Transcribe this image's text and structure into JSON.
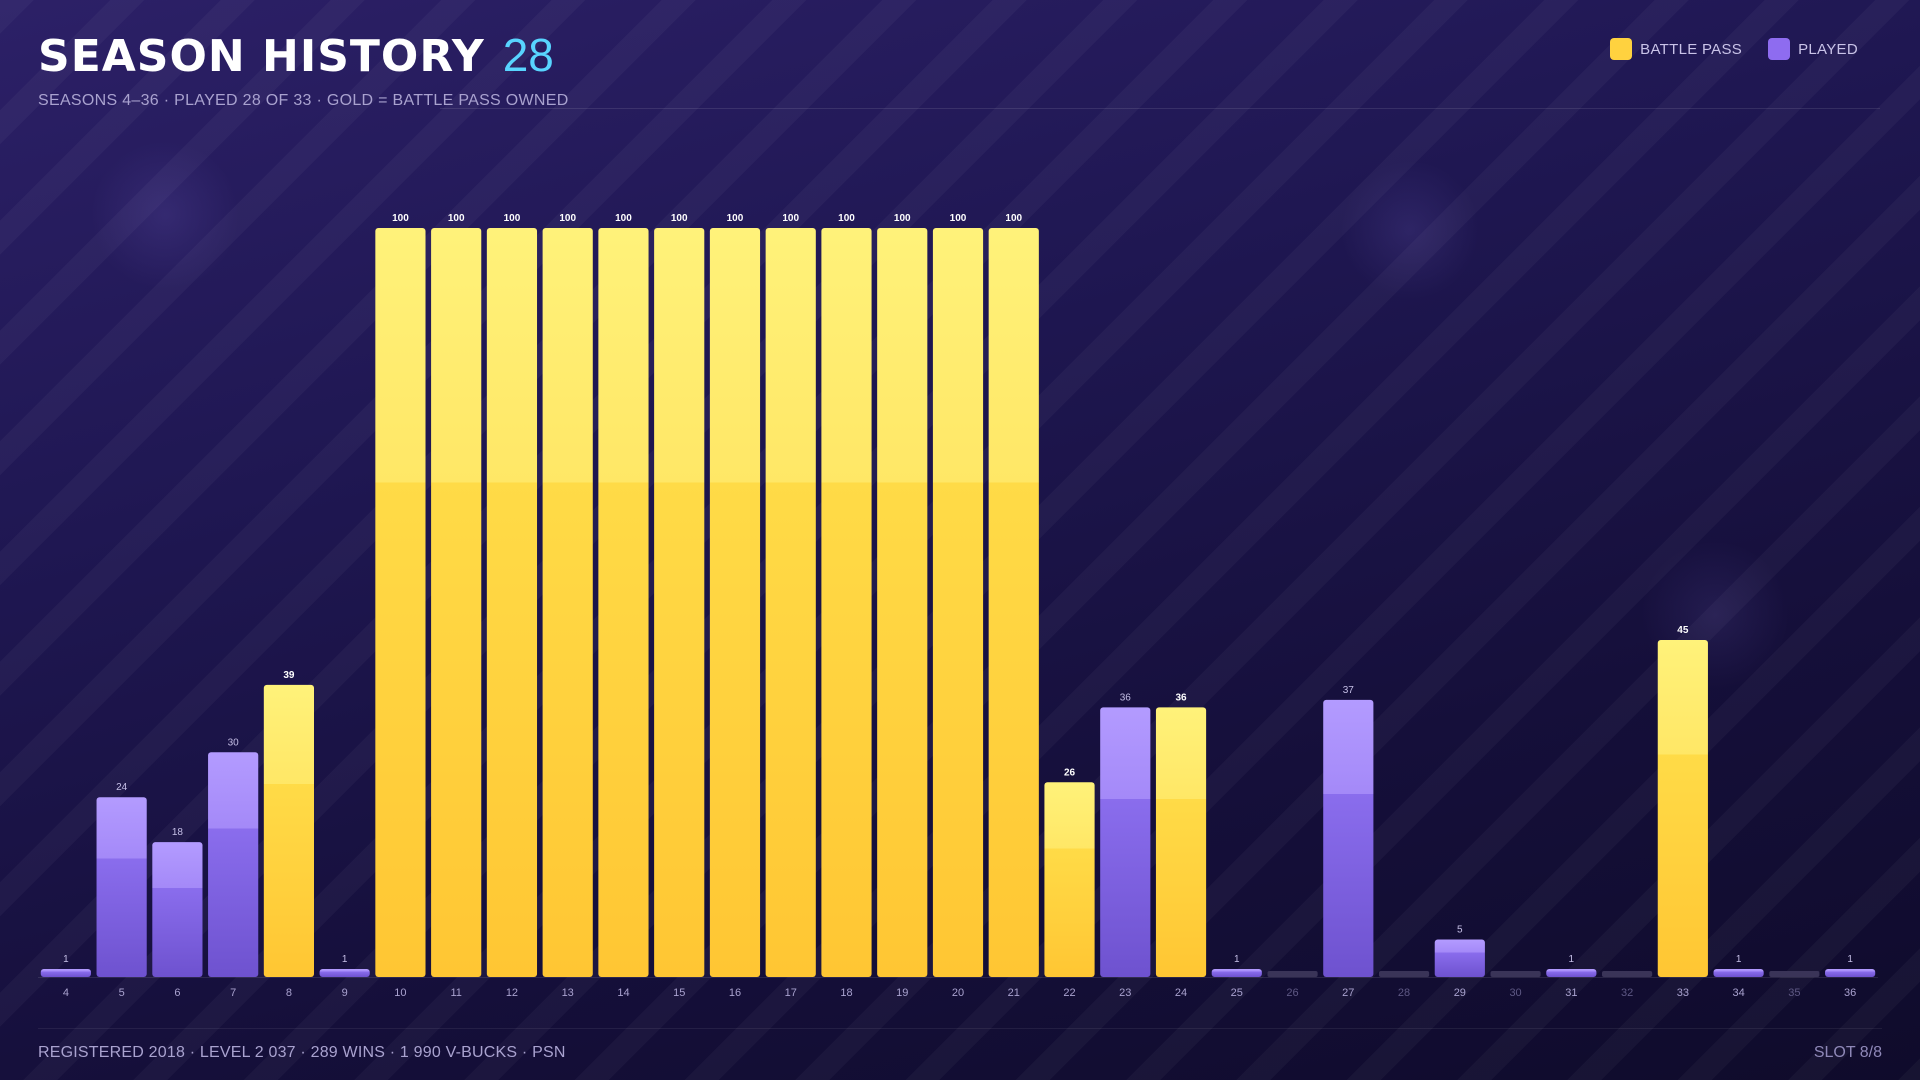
{
  "header": {
    "title": "SEASON HISTORY",
    "count": "28",
    "subtitle": "SEASONS 4–36  ·  PLAYED 28 OF 33  ·  GOLD = BATTLE PASS OWNED"
  },
  "legend": [
    {
      "label": "BATTLE PASS",
      "color": "#ffd23f"
    },
    {
      "label": "PLAYED",
      "color": "#8e6cf0"
    }
  ],
  "footer": {
    "left": "REGISTERED 2018  ·  LEVEL 2 037  ·  289 WINS  ·  1 990 V-BUCKS  ·  PSN",
    "right": "SLOT 8/8"
  },
  "colors": {
    "battle_pass": "#ffd23f",
    "played": "#8e6cf0",
    "not_played": "#3a3458",
    "accent": "#58d4ff"
  },
  "chart_data": {
    "type": "bar",
    "title": "",
    "xlabel": "",
    "ylabel": "",
    "ylim": [
      0,
      100
    ],
    "grid": false,
    "legend_position": "top-right",
    "categories": [
      "4",
      "5",
      "6",
      "7",
      "8",
      "9",
      "10",
      "11",
      "12",
      "13",
      "14",
      "15",
      "16",
      "17",
      "18",
      "19",
      "20",
      "21",
      "22",
      "23",
      "24",
      "25",
      "26",
      "27",
      "28",
      "29",
      "30",
      "31",
      "32",
      "33",
      "34",
      "35",
      "36"
    ],
    "values": [
      1,
      24,
      18,
      30,
      39,
      1,
      100,
      100,
      100,
      100,
      100,
      100,
      100,
      100,
      100,
      100,
      100,
      100,
      26,
      36,
      36,
      1,
      0,
      37,
      0,
      5,
      0,
      1,
      0,
      45,
      1,
      0,
      1
    ],
    "status": [
      "played",
      "played",
      "played",
      "played",
      "battle_pass",
      "played",
      "battle_pass",
      "battle_pass",
      "battle_pass",
      "battle_pass",
      "battle_pass",
      "battle_pass",
      "battle_pass",
      "battle_pass",
      "battle_pass",
      "battle_pass",
      "battle_pass",
      "battle_pass",
      "battle_pass",
      "played",
      "battle_pass",
      "played",
      "none",
      "played",
      "none",
      "played",
      "none",
      "played",
      "none",
      "battle_pass",
      "played",
      "none",
      "played"
    ]
  }
}
